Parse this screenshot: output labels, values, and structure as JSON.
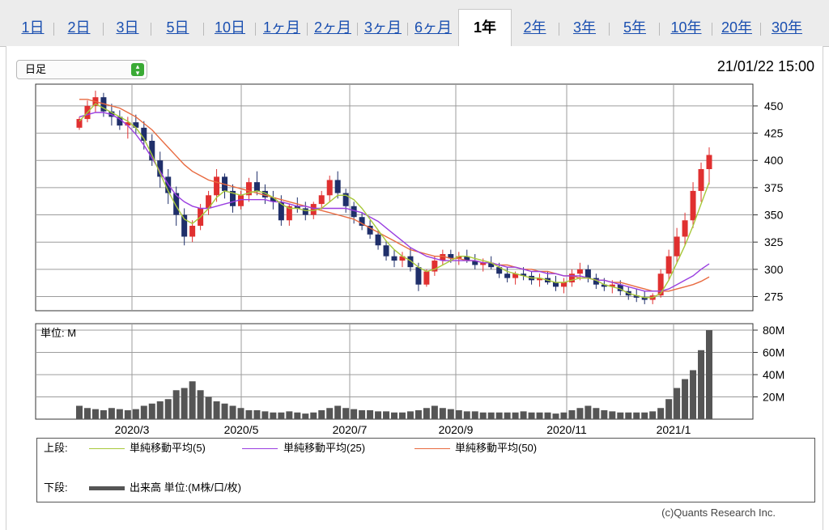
{
  "tabs": [
    {
      "label": "1日",
      "active": false
    },
    {
      "label": "2日",
      "active": false
    },
    {
      "label": "3日",
      "active": false
    },
    {
      "label": "5日",
      "active": false
    },
    {
      "label": "10日",
      "active": false
    },
    {
      "label": "1ヶ月",
      "active": false
    },
    {
      "label": "2ヶ月",
      "active": false
    },
    {
      "label": "3ヶ月",
      "active": false
    },
    {
      "label": "6ヶ月",
      "active": false
    },
    {
      "label": "1年",
      "active": true
    },
    {
      "label": "2年",
      "active": false
    },
    {
      "label": "3年",
      "active": false
    },
    {
      "label": "5年",
      "active": false
    },
    {
      "label": "10年",
      "active": false
    },
    {
      "label": "20年",
      "active": false
    },
    {
      "label": "30年",
      "active": false
    }
  ],
  "period_select": {
    "value": "日足"
  },
  "timestamp": "21/01/22 15:00",
  "copyright": "(c)Quants Research Inc.",
  "colors": {
    "ma5": "#a8c83a",
    "ma25": "#9a3fe0",
    "ma50": "#e86a40",
    "candle_up": "#e03030",
    "candle_down": "#1f2f6a",
    "volume": "#555555",
    "grid": "#9c9c9c"
  },
  "legend": {
    "upper_label": "上段:",
    "lower_label": "下段:",
    "ma5_label": "単純移動平均(5)",
    "ma25_label": "単純移動平均(25)",
    "ma50_label": "単純移動平均(50)",
    "volume_label": "出来高 単位:(M株/口/枚)"
  },
  "chart_data": {
    "type": "candlestick",
    "x_tick_labels": [
      "2020/3",
      "2020/5",
      "2020/7",
      "2020/9",
      "2020/11",
      "2021/1"
    ],
    "price_axis": {
      "ticks": [
        275,
        300,
        325,
        350,
        375,
        400,
        425,
        450
      ],
      "range": [
        262,
        470
      ]
    },
    "volume_axis": {
      "ticks": [
        "20M",
        "40M",
        "60M",
        "80M"
      ],
      "range": [
        0,
        80
      ],
      "unit_label": "単位: M"
    },
    "candles": [
      [
        430,
        440,
        428,
        438
      ],
      [
        438,
        455,
        435,
        450
      ],
      [
        450,
        464,
        444,
        458
      ],
      [
        458,
        462,
        440,
        445
      ],
      [
        445,
        452,
        432,
        440
      ],
      [
        440,
        446,
        428,
        432
      ],
      [
        432,
        440,
        420,
        435
      ],
      [
        435,
        442,
        425,
        430
      ],
      [
        430,
        436,
        410,
        418
      ],
      [
        418,
        424,
        395,
        400
      ],
      [
        400,
        408,
        375,
        385
      ],
      [
        385,
        392,
        360,
        370
      ],
      [
        370,
        376,
        340,
        350
      ],
      [
        350,
        356,
        322,
        330
      ],
      [
        330,
        345,
        325,
        340
      ],
      [
        340,
        360,
        336,
        356
      ],
      [
        356,
        372,
        350,
        368
      ],
      [
        368,
        392,
        362,
        385
      ],
      [
        385,
        388,
        365,
        372
      ],
      [
        372,
        378,
        352,
        358
      ],
      [
        358,
        372,
        355,
        368
      ],
      [
        368,
        384,
        362,
        380
      ],
      [
        380,
        390,
        368,
        372
      ],
      [
        372,
        378,
        360,
        366
      ],
      [
        366,
        372,
        355,
        362
      ],
      [
        362,
        368,
        340,
        345
      ],
      [
        345,
        360,
        340,
        358
      ],
      [
        358,
        366,
        352,
        356
      ],
      [
        356,
        362,
        345,
        350
      ],
      [
        350,
        362,
        346,
        360
      ],
      [
        360,
        372,
        355,
        368
      ],
      [
        368,
        386,
        362,
        382
      ],
      [
        382,
        390,
        365,
        370
      ],
      [
        370,
        374,
        352,
        358
      ],
      [
        358,
        362,
        342,
        348
      ],
      [
        348,
        352,
        336,
        340
      ],
      [
        340,
        345,
        328,
        332
      ],
      [
        332,
        336,
        318,
        322
      ],
      [
        322,
        326,
        308,
        312
      ],
      [
        312,
        318,
        302,
        308
      ],
      [
        308,
        316,
        302,
        312
      ],
      [
        312,
        320,
        298,
        302
      ],
      [
        302,
        306,
        280,
        286
      ],
      [
        286,
        300,
        284,
        298
      ],
      [
        298,
        312,
        294,
        308
      ],
      [
        308,
        318,
        304,
        314
      ],
      [
        314,
        318,
        306,
        310
      ],
      [
        310,
        316,
        304,
        312
      ],
      [
        312,
        318,
        306,
        308
      ],
      [
        308,
        314,
        300,
        304
      ],
      [
        304,
        310,
        298,
        306
      ],
      [
        306,
        312,
        300,
        302
      ],
      [
        302,
        306,
        292,
        296
      ],
      [
        296,
        302,
        288,
        292
      ],
      [
        292,
        298,
        286,
        296
      ],
      [
        296,
        302,
        290,
        294
      ],
      [
        294,
        298,
        286,
        290
      ],
      [
        290,
        296,
        284,
        292
      ],
      [
        292,
        298,
        286,
        288
      ],
      [
        288,
        294,
        280,
        284
      ],
      [
        284,
        292,
        278,
        288
      ],
      [
        288,
        300,
        284,
        296
      ],
      [
        296,
        306,
        290,
        300
      ],
      [
        300,
        304,
        288,
        292
      ],
      [
        292,
        296,
        282,
        286
      ],
      [
        286,
        292,
        280,
        284
      ],
      [
        284,
        290,
        278,
        286
      ],
      [
        286,
        290,
        276,
        280
      ],
      [
        280,
        284,
        272,
        276
      ],
      [
        276,
        282,
        270,
        274
      ],
      [
        274,
        280,
        268,
        272
      ],
      [
        272,
        278,
        268,
        276
      ],
      [
        276,
        300,
        274,
        296
      ],
      [
        296,
        318,
        290,
        312
      ],
      [
        312,
        338,
        306,
        330
      ],
      [
        330,
        352,
        322,
        345
      ],
      [
        345,
        380,
        338,
        372
      ],
      [
        372,
        398,
        362,
        392
      ],
      [
        392,
        412,
        378,
        405
      ]
    ],
    "ma5": [
      436,
      444,
      452,
      448,
      444,
      440,
      436,
      430,
      420,
      405,
      388,
      372,
      358,
      346,
      342,
      348,
      356,
      366,
      372,
      370,
      368,
      370,
      372,
      370,
      366,
      360,
      356,
      356,
      354,
      354,
      356,
      362,
      368,
      368,
      364,
      356,
      346,
      336,
      326,
      318,
      312,
      308,
      302,
      298,
      300,
      304,
      308,
      312,
      312,
      310,
      308,
      306,
      302,
      298,
      296,
      294,
      292,
      292,
      290,
      288,
      288,
      290,
      292,
      292,
      290,
      286,
      284,
      282,
      278,
      276,
      274,
      274,
      278,
      290,
      306,
      322,
      340,
      360,
      380
    ],
    "ma25": [
      440,
      442,
      444,
      444,
      442,
      438,
      432,
      424,
      414,
      402,
      390,
      378,
      368,
      362,
      358,
      356,
      356,
      358,
      360,
      362,
      364,
      364,
      364,
      364,
      362,
      362,
      360,
      358,
      358,
      356,
      356,
      356,
      356,
      356,
      354,
      352,
      348,
      344,
      338,
      332,
      326,
      320,
      316,
      312,
      310,
      308,
      308,
      308,
      308,
      308,
      306,
      306,
      304,
      302,
      302,
      300,
      298,
      298,
      296,
      296,
      294,
      294,
      294,
      292,
      290,
      290,
      288,
      286,
      284,
      282,
      280,
      280,
      280,
      282,
      286,
      290,
      294,
      300,
      305
    ],
    "ma50": [
      456,
      456,
      454,
      452,
      450,
      448,
      444,
      440,
      434,
      428,
      420,
      412,
      404,
      396,
      390,
      386,
      382,
      380,
      378,
      376,
      374,
      372,
      370,
      368,
      366,
      364,
      362,
      360,
      358,
      356,
      354,
      352,
      350,
      348,
      346,
      342,
      338,
      334,
      330,
      326,
      322,
      318,
      316,
      314,
      312,
      312,
      310,
      310,
      308,
      308,
      306,
      306,
      304,
      304,
      302,
      300,
      300,
      298,
      298,
      296,
      294,
      294,
      292,
      292,
      290,
      290,
      288,
      288,
      286,
      284,
      282,
      280,
      280,
      280,
      282,
      284,
      286,
      289,
      293
    ],
    "volume": [
      12,
      10,
      9,
      8,
      10,
      9,
      8,
      9,
      12,
      14,
      16,
      18,
      26,
      28,
      34,
      26,
      20,
      16,
      14,
      12,
      10,
      8,
      8,
      7,
      6,
      6,
      7,
      6,
      5,
      6,
      8,
      10,
      12,
      10,
      9,
      8,
      8,
      7,
      7,
      6,
      6,
      7,
      8,
      10,
      12,
      10,
      9,
      8,
      7,
      7,
      6,
      6,
      6,
      6,
      6,
      7,
      6,
      6,
      6,
      5,
      6,
      8,
      10,
      12,
      10,
      8,
      7,
      6,
      6,
      6,
      6,
      7,
      10,
      18,
      28,
      36,
      44,
      62,
      80
    ]
  }
}
